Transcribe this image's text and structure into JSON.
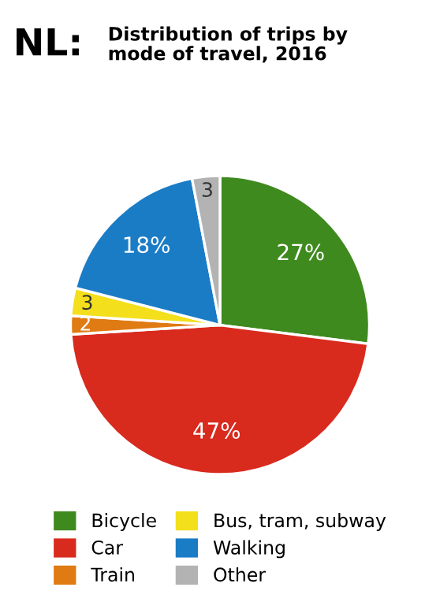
{
  "chart_data": {
    "type": "pie",
    "title": "NL:",
    "subtitle": "Distribution of trips by\nmode of travel, 2016",
    "categories": [
      "Bicycle",
      "Car",
      "Train",
      "Bus, tram, subway",
      "Walking",
      "Other"
    ],
    "values": [
      27,
      47,
      2,
      3,
      18,
      3
    ],
    "colors": [
      "#3f8a1f",
      "#d92a1e",
      "#e07a12",
      "#f4df1c",
      "#1b7cc6",
      "#b3b3b3"
    ],
    "value_labels": [
      "27%",
      "47%",
      "2",
      "3",
      "18%",
      "3"
    ],
    "legend": "bottom"
  }
}
